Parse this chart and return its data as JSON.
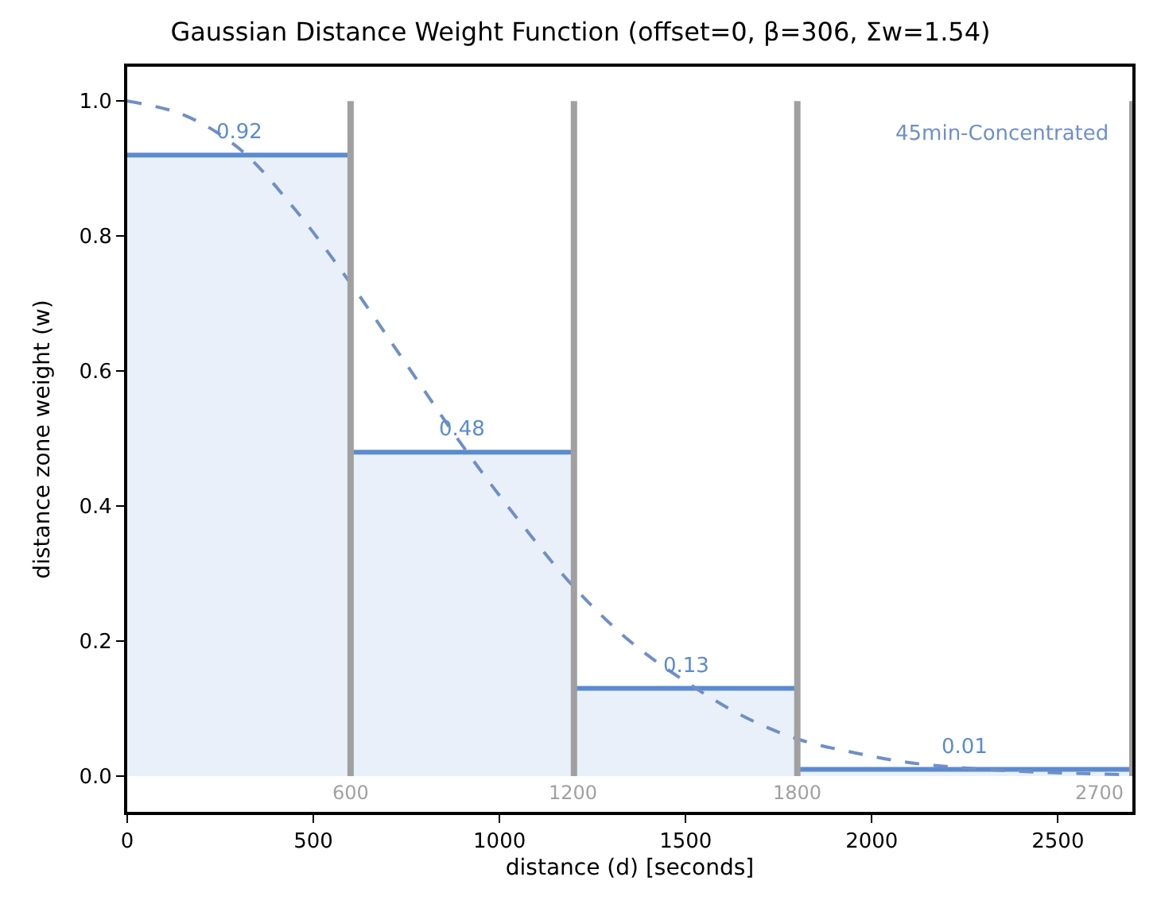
{
  "chart_data": {
    "type": "area",
    "title": "Gaussian Distance Weight Function (offset=0, β=306, Σw=1.54)",
    "xlabel": "distance (d) [seconds]",
    "ylabel": "distance zone weight (w)",
    "series": [
      {
        "color": "#5b8bd0",
        "x": [
          0,
          300,
          600,
          600,
          900,
          1200,
          1200,
          1500,
          1800,
          1800,
          2250,
          2700
        ],
        "values": [
          0.92,
          0.92,
          0.92,
          0.48,
          0.48,
          0.48,
          0.13,
          0.13,
          0.13,
          0.01,
          0.01,
          0.01
        ],
        "value_labels": [
          null,
          "0.92",
          null,
          null,
          "0.48",
          null,
          null,
          "0.13",
          null,
          null,
          "0.01",
          null
        ]
      },
      {
        "type": "line",
        "color": "#6f8fc8",
        "line_style": "dashed",
        "x": [
          0,
          150,
          300,
          450,
          600,
          750,
          900,
          1050,
          1200,
          1350,
          1500,
          1650,
          1800,
          1950,
          2100,
          2250,
          2400,
          2550,
          2700
        ],
        "values": [
          1.0,
          0.98,
          0.93,
          0.84,
          0.73,
          0.61,
          0.49,
          0.38,
          0.28,
          0.2,
          0.14,
          0.09,
          0.055,
          0.035,
          0.02,
          0.012,
          0.007,
          0.004,
          0.002
        ]
      }
    ],
    "ref_lines": [
      {
        "axis": "x",
        "value": 600,
        "label": "600",
        "color": "#a0a0a0"
      },
      {
        "axis": "x",
        "value": 1200,
        "label": "1200",
        "color": "#a0a0a0"
      },
      {
        "axis": "x",
        "value": 1800,
        "label": "1800",
        "color": "#a0a0a0"
      },
      {
        "axis": "x",
        "value": 2700,
        "label": "2700",
        "color": "#a0a0a0"
      }
    ],
    "annotations": [
      "45min-Concentrated"
    ],
    "xlim": [
      0,
      2700
    ],
    "xticks": [
      0,
      500,
      1000,
      1500,
      2000,
      2500
    ],
    "ylim": [
      -0.053,
      1.051
    ],
    "yticks": [
      {
        "value": 0,
        "label": "0.0"
      },
      0.2,
      0.4,
      0.6,
      0.8,
      {
        "value": 1,
        "label": "1.0"
      }
    ]
  }
}
